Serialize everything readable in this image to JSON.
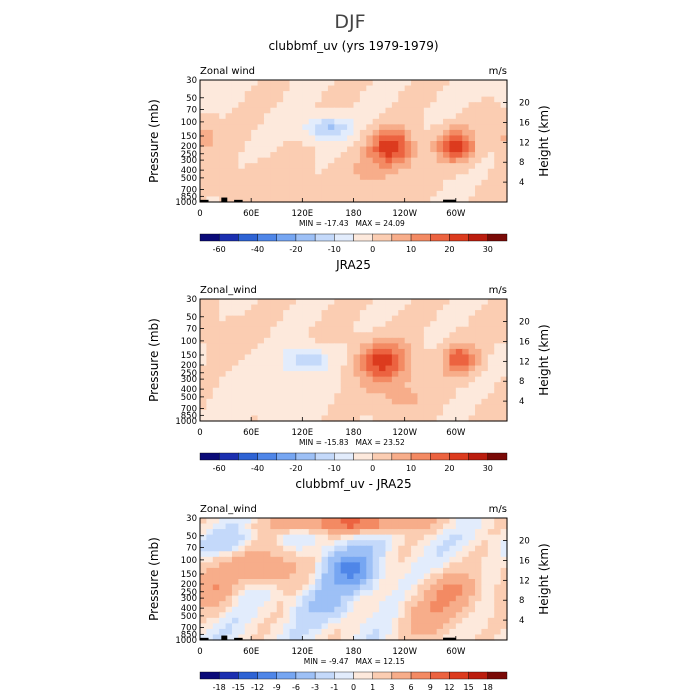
{
  "figure": {
    "title": "DJF"
  },
  "colorbar_colors": [
    "#0a0a78",
    "#1b2fb0",
    "#2e63d4",
    "#4f86e8",
    "#76a6f2",
    "#9dc0f6",
    "#c4d9fa",
    "#e2ecfc",
    "#fde9dc",
    "#fbcdb2",
    "#f7ad8a",
    "#f38a63",
    "#ec6340",
    "#dc3b1e",
    "#bb1d0e",
    "#7a0a07"
  ],
  "chart_data": [
    {
      "type": "heatmap",
      "title": "clubbmf_uv (yrs 1979-1979)",
      "variable_label": "Zonal wind",
      "units": "m/s",
      "ylabel": "Pressure (mb)",
      "ylabel_right": "Height (km)",
      "x_ticks": [
        "0",
        "60E",
        "120E",
        "180",
        "120W",
        "60W"
      ],
      "y_ticks": [
        "30",
        "50",
        "70",
        "100",
        "150",
        "200",
        "250",
        "300",
        "400",
        "500",
        "700",
        "850",
        "1000"
      ],
      "y_ticks_right": [
        "20",
        "16",
        "12",
        "8",
        "4"
      ],
      "min_text": "MIN =  -17.43",
      "max_text": "MAX =  24.09",
      "min": -17.43,
      "max": 24.09,
      "colorbar_ticks": [
        "-60",
        "-40",
        "-20",
        "-10",
        "0",
        "10",
        "20",
        "30"
      ],
      "features": [
        {
          "lon": 150,
          "p": 120,
          "value": -16,
          "rx": 28,
          "rp": 0.35
        },
        {
          "lon": 110,
          "p": 20,
          "value": -3,
          "rx": 50,
          "rp": 0.4
        },
        {
          "lon": 225,
          "p": 200,
          "value": 22,
          "rx": 24,
          "rp": 0.5
        },
        {
          "lon": 300,
          "p": 200,
          "value": 22,
          "rx": 22,
          "rp": 0.45
        },
        {
          "lon": 5,
          "p": 150,
          "value": 8,
          "rx": 18,
          "rp": 0.5
        },
        {
          "lon": 210,
          "p": 400,
          "value": 6,
          "rx": 40,
          "rp": 0.7
        },
        {
          "lon": 80,
          "p": 700,
          "value": 3,
          "rx": 60,
          "rp": 0.8
        },
        {
          "lon": 350,
          "p": 40,
          "value": -2,
          "rx": 30,
          "rp": 0.4
        }
      ]
    },
    {
      "type": "heatmap",
      "title": "JRA25",
      "variable_label": "Zonal_wind",
      "units": "m/s",
      "ylabel": "Pressure (mb)",
      "ylabel_right": "Height (km)",
      "x_ticks": [
        "0",
        "60E",
        "120E",
        "180",
        "120W",
        "60W"
      ],
      "y_ticks": [
        "30",
        "50",
        "70",
        "100",
        "150",
        "200",
        "250",
        "300",
        "400",
        "500",
        "700",
        "850",
        "1000"
      ],
      "y_ticks_right": [
        "20",
        "16",
        "12",
        "8",
        "4"
      ],
      "min_text": "MIN =  -15.83",
      "max_text": "MAX =  23.52",
      "min": -15.83,
      "max": 23.52,
      "colorbar_ticks": [
        "-60",
        "-40",
        "-20",
        "-10",
        "0",
        "10",
        "20",
        "30"
      ],
      "features": [
        {
          "lon": 125,
          "p": 170,
          "value": -14,
          "rx": 26,
          "rp": 0.35
        },
        {
          "lon": 90,
          "p": 400,
          "value": -4,
          "rx": 55,
          "rp": 0.8
        },
        {
          "lon": 215,
          "p": 180,
          "value": 22,
          "rx": 30,
          "rp": 0.55
        },
        {
          "lon": 305,
          "p": 170,
          "value": 18,
          "rx": 20,
          "rp": 0.45
        },
        {
          "lon": 230,
          "p": 500,
          "value": 6,
          "rx": 40,
          "rp": 0.6
        },
        {
          "lon": 20,
          "p": 80,
          "value": 2,
          "rx": 40,
          "rp": 0.6
        }
      ]
    },
    {
      "type": "heatmap",
      "title": "clubbmf_uv - JRA25",
      "variable_label": "Zonal_wind",
      "units": "m/s",
      "ylabel": "Pressure (mb)",
      "ylabel_right": "Height (km)",
      "x_ticks": [
        "0",
        "60E",
        "120E",
        "180",
        "120W",
        "60W"
      ],
      "y_ticks": [
        "30",
        "50",
        "70",
        "100",
        "150",
        "200",
        "250",
        "300",
        "400",
        "500",
        "700",
        "850",
        "1000"
      ],
      "y_ticks_right": [
        "20",
        "16",
        "12",
        "8",
        "4"
      ],
      "min_text": "MIN =  -9.47",
      "max_text": "MAX =  12.15",
      "min": -9.47,
      "max": 12.15,
      "colorbar_ticks": [
        "-18",
        "-15",
        "-12",
        "-9",
        "-6",
        "-3",
        "-1",
        "0",
        "1",
        "3",
        "6",
        "9",
        "12",
        "15",
        "18"
      ],
      "features": [
        {
          "lon": 175,
          "p": 130,
          "value": -9,
          "rx": 30,
          "rp": 0.6
        },
        {
          "lon": 145,
          "p": 350,
          "value": -3,
          "rx": 30,
          "rp": 0.5
        },
        {
          "lon": 80,
          "p": 120,
          "value": 6,
          "rx": 40,
          "rp": 0.5
        },
        {
          "lon": 15,
          "p": 200,
          "value": 5,
          "rx": 25,
          "rp": 0.7
        },
        {
          "lon": 270,
          "p": 500,
          "value": 4,
          "rx": 35,
          "rp": 0.8
        },
        {
          "lon": 180,
          "p": 35,
          "value": 9,
          "rx": 80,
          "rp": 0.25
        },
        {
          "lon": 300,
          "p": 250,
          "value": 5,
          "rx": 30,
          "rp": 0.6
        },
        {
          "lon": 30,
          "p": 60,
          "value": -2,
          "rx": 35,
          "rp": 0.35
        }
      ]
    }
  ]
}
